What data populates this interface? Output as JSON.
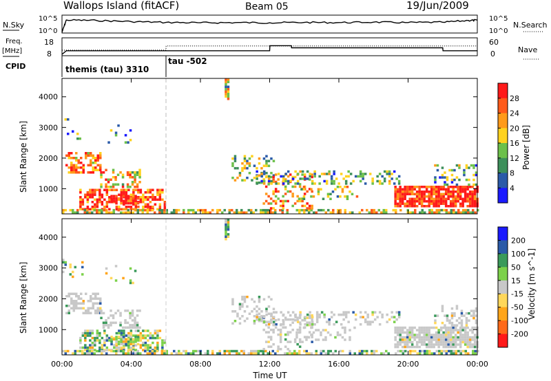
{
  "header": {
    "station": "Wallops Island (fitACF)",
    "beam": "Beam 05",
    "date": "19/Jun/2009"
  },
  "noise_panel": {
    "left_label": "N.Sky",
    "left_ticks": [
      "10^5",
      "10^0"
    ],
    "right_label": "N.Search",
    "right_ticks": [
      "10^5",
      "10^0"
    ]
  },
  "freq_panel": {
    "left_label_line1": "Freq.",
    "left_label_line2": "[MHz]",
    "left_ticks": [
      "18",
      "8"
    ],
    "right_label": "Nave",
    "right_ticks": [
      "60",
      "0"
    ]
  },
  "cpid": {
    "label": "CPID",
    "segments": [
      "themis (tau) 3310",
      "tau -502"
    ]
  },
  "colors": {
    "power": [
      "#1a1aff",
      "#2a5aa8",
      "#3d8f5a",
      "#6cc04a",
      "#ffd21f",
      "#ff9a1a",
      "#ff5a1a",
      "#ff1a1a"
    ],
    "velocity": [
      "#ff1a1a",
      "#ff6a1a",
      "#ffa51a",
      "#ffd75a",
      "#c8c8c8",
      "#7cd14a",
      "#3a9a5a",
      "#2a5aa8",
      "#1a1aff"
    ],
    "ground_scatter": "#c8c8c8"
  },
  "chart_data": [
    {
      "type": "line",
      "title": "Wallops Island (fitACF)",
      "xlabel": "",
      "ylabel": "N.Sky",
      "y_scale": "log",
      "ylim": [
        1,
        100000
      ],
      "x_range": [
        "00:00",
        "24:00"
      ],
      "series": [
        {
          "x": [
            "00:00",
            "00:15",
            "02:00",
            "04:00",
            "06:00",
            "08:00",
            "10:00",
            "12:00",
            "14:00",
            "16:00",
            "18:00",
            "20:00",
            "22:00",
            "23:30",
            "24:00"
          ],
          "values": [
            1,
            30000,
            20000,
            8000,
            4000,
            3000,
            3500,
            3000,
            4000,
            3500,
            5000,
            3500,
            4500,
            20000,
            25000
          ]
        }
      ]
    },
    {
      "type": "line",
      "xlabel": "",
      "ylabel": "Freq. [MHz]",
      "ylim": [
        8,
        18
      ],
      "x_range": [
        "00:00",
        "24:00"
      ],
      "series": [
        {
          "name": "Freq.",
          "x": [
            "00:00",
            "00:15",
            "12:00",
            "12:01",
            "13:15",
            "13:16",
            "22:00",
            "22:01",
            "24:00"
          ],
          "values": [
            8,
            10.5,
            10.5,
            14,
            14,
            12.5,
            12.5,
            10.5,
            10.5
          ]
        },
        {
          "name": "Nave",
          "y_axis": "right",
          "ylim": [
            0,
            60
          ],
          "x": [
            "00:00",
            "06:00",
            "06:01",
            "24:00"
          ],
          "values": [
            17,
            17,
            35,
            35
          ]
        }
      ]
    },
    {
      "type": "heatmap",
      "xlabel": "",
      "ylabel": "Slant Range [km]",
      "x_ticks": [
        "00:00",
        "04:00",
        "08:00",
        "12:00",
        "16:00",
        "20:00",
        "00:00"
      ],
      "y_ticks": [
        "1000",
        "2000",
        "3000",
        "4000"
      ],
      "ylim": [
        180,
        4600
      ],
      "colorbar_label": "Power [dB]",
      "colorbar_ticks": [
        "4",
        "8",
        "12",
        "16",
        "20",
        "24",
        "28"
      ],
      "colorbar_range": [
        0,
        32
      ]
    },
    {
      "type": "heatmap",
      "xlabel": "Time UT",
      "ylabel": "Slant Range [km]",
      "x_ticks": [
        "00:00",
        "04:00",
        "08:00",
        "12:00",
        "16:00",
        "20:00",
        "00:00"
      ],
      "y_ticks": [
        "1000",
        "2000",
        "3000",
        "4000"
      ],
      "ylim": [
        180,
        4600
      ],
      "colorbar_label": "Velocity [m s^-1]",
      "colorbar_ticks": [
        "200",
        "100",
        "50",
        "15",
        "-15",
        "-50",
        "-100",
        "-200"
      ]
    }
  ]
}
